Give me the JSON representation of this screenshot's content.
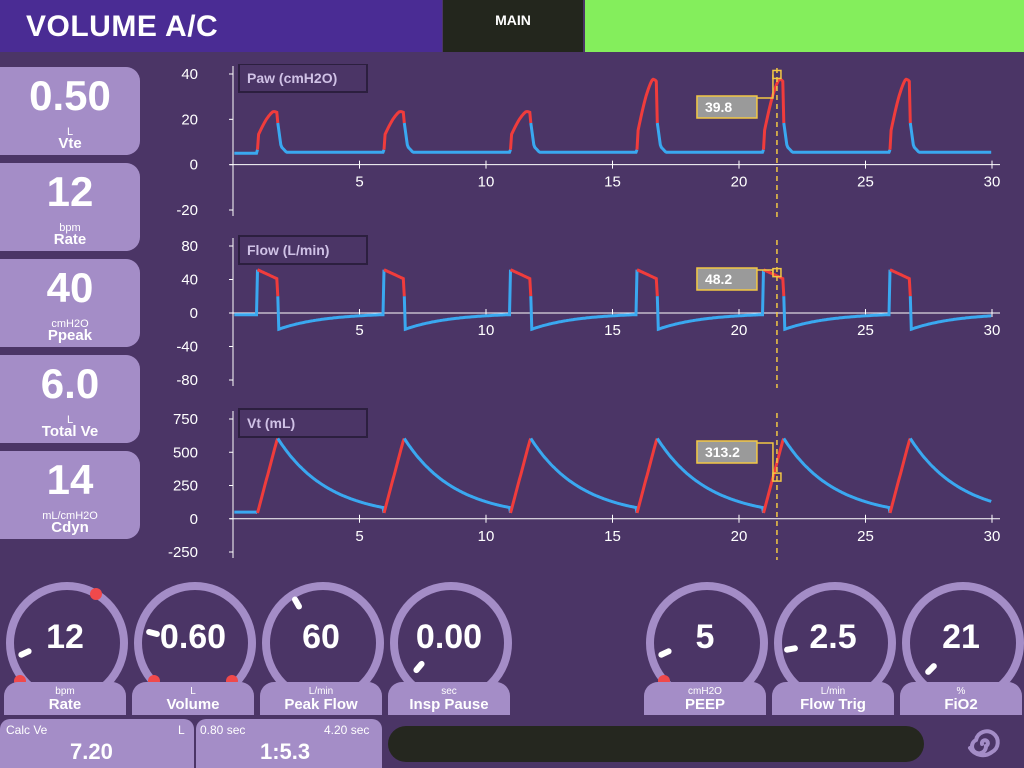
{
  "header": {
    "mode": "VOLUME A/C",
    "main_tab": "MAIN",
    "status_color": "#84ee5c"
  },
  "monitored": [
    {
      "value": "0.50",
      "unit": "L",
      "label": "Vte"
    },
    {
      "value": "12",
      "unit": "bpm",
      "label": "Rate"
    },
    {
      "value": "40",
      "unit": "cmH2O",
      "label": "Ppeak"
    },
    {
      "value": "6.0",
      "unit": "L",
      "label": "Total Ve"
    },
    {
      "value": "14",
      "unit": "mL/cmH2O",
      "label": "Cdyn"
    }
  ],
  "waveforms": {
    "x_ticks": [
      "5",
      "10",
      "15",
      "20",
      "25",
      "30"
    ],
    "x_range": [
      0,
      30
    ],
    "cursor_time": 21.5,
    "inspiration_color": "#f03c3c",
    "expiration_color": "#3aa8f0",
    "panels": [
      {
        "title": "Paw (cmH2O)",
        "y_ticks": [
          "40",
          "20",
          "0",
          "-20"
        ],
        "y_range": [
          -20,
          40
        ],
        "cursor_value": "39.8"
      },
      {
        "title": "Flow (L/min)",
        "y_ticks": [
          "80",
          "40",
          "0",
          "-40",
          "-80"
        ],
        "y_range": [
          -80,
          80
        ],
        "cursor_value": "48.2"
      },
      {
        "title": "Vt (mL)",
        "y_ticks": [
          "750",
          "500",
          "250",
          "0",
          "-250"
        ],
        "y_range": [
          -250,
          750
        ],
        "cursor_value": "313.2"
      }
    ]
  },
  "settings": [
    {
      "value": "12",
      "unit": "bpm",
      "label": "Rate"
    },
    {
      "value": "0.60",
      "unit": "L",
      "label": "Volume"
    },
    {
      "value": "60",
      "unit": "L/min",
      "label": "Peak Flow"
    },
    {
      "value": "0.00",
      "unit": "sec",
      "label": "Insp Pause"
    },
    {
      "value": "5",
      "unit": "cmH2O",
      "label": "PEEP"
    },
    {
      "value": "2.5",
      "unit": "L/min",
      "label": "Flow Trig"
    },
    {
      "value": "21",
      "unit": "%",
      "label": "FiO2"
    }
  ],
  "calc": {
    "ve_label": "Calc Ve",
    "ve_unit": "L",
    "ve_value": "7.20",
    "ti": "0.80 sec",
    "te": "4.20 sec",
    "ie_ratio": "1:5.3"
  },
  "icons": {
    "logo": "spiral-logo-icon"
  }
}
